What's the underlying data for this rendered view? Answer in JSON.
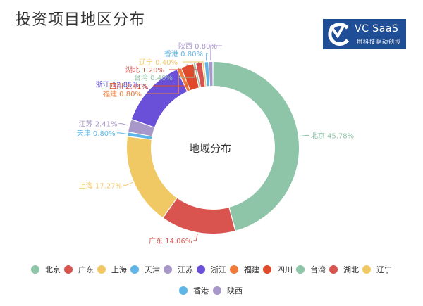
{
  "page": {
    "title": "投资项目地区分布",
    "logo": {
      "name": "VC SaaS",
      "tagline": "用科技驱动创投"
    }
  },
  "chart_data": {
    "type": "pie",
    "donut": true,
    "center_label": "地域分布",
    "legend_position": "bottom",
    "series": [
      {
        "name": "北京",
        "value": 45.78,
        "label": "北京 45.78%",
        "color": "#8ec5a8"
      },
      {
        "name": "广东",
        "value": 14.06,
        "label": "广东 14.06%",
        "color": "#d9534f"
      },
      {
        "name": "上海",
        "value": 17.27,
        "label": "上海 17.27%",
        "color": "#f0c964"
      },
      {
        "name": "天津",
        "value": 0.8,
        "label": "天津 0.80%",
        "color": "#5fb6e6"
      },
      {
        "name": "江苏",
        "value": 2.41,
        "label": "江苏 2.41%",
        "color": "#a897c9"
      },
      {
        "name": "浙江",
        "value": 12.85,
        "label": "浙江 12.85%",
        "color": "#6a4fd8"
      },
      {
        "name": "福建",
        "value": 0.8,
        "label": "福建 0.80%",
        "color": "#f07a3a"
      },
      {
        "name": "四川",
        "value": 2.41,
        "label": "四川 2.41%",
        "color": "#e04a2a"
      },
      {
        "name": "台湾",
        "value": 0.4,
        "label": "台湾 0.40%",
        "color": "#8ec5a8"
      },
      {
        "name": "湖北",
        "value": 1.2,
        "label": "湖北 1.20%",
        "color": "#d9534f"
      },
      {
        "name": "辽宁",
        "value": 0.4,
        "label": "辽宁 0.40%",
        "color": "#f0c964"
      },
      {
        "name": "香港",
        "value": 0.8,
        "label": "香港 0.80%",
        "color": "#5fb6e6"
      },
      {
        "name": "陕西",
        "value": 0.8,
        "label": "陕西 0.80%",
        "color": "#a897c9"
      }
    ]
  }
}
